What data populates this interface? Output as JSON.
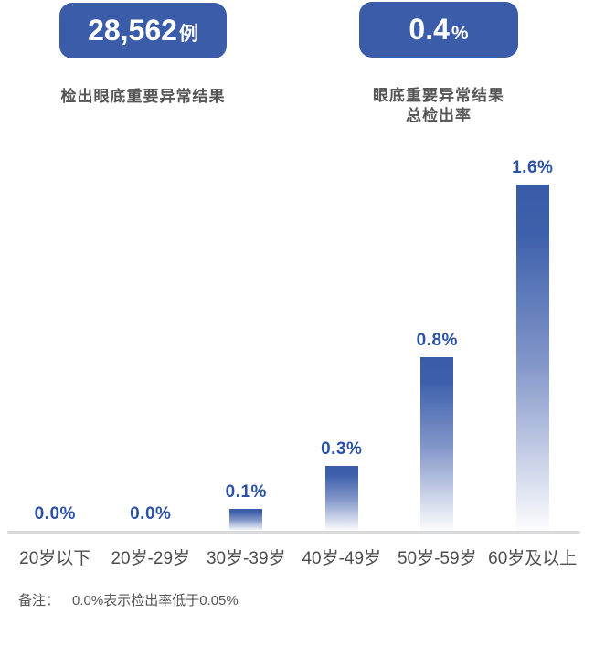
{
  "stats": [
    {
      "value": "28,562",
      "unit": "例",
      "label": "检出眼底重要异常结果"
    },
    {
      "value": "0.4",
      "unit": "%",
      "label": "眼底重要异常结果\n总检出率"
    }
  ],
  "chart_data": {
    "type": "bar",
    "categories": [
      "20岁以下",
      "20岁-29岁",
      "30岁-39岁",
      "40岁-49岁",
      "50岁-59岁",
      "60岁及以上"
    ],
    "values": [
      0.0,
      0.0,
      0.1,
      0.3,
      0.8,
      1.6
    ],
    "value_labels": [
      "0.0%",
      "0.0%",
      "0.1%",
      "0.3%",
      "0.8%",
      "1.6%"
    ],
    "title": "",
    "xlabel": "",
    "ylabel": "",
    "unit": "%",
    "ylim": [
      0,
      1.6
    ],
    "grid": false,
    "legend": "none",
    "bar_gradient_top": "#3A5CA8",
    "bar_gradient_upper": "#3F61AC",
    "bar_gradient_mid": "#8397C9",
    "bar_gradient_bottom": "#FDFDFE",
    "value_label_color": "#2B52A3"
  },
  "note": {
    "prefix": "备注：",
    "text": "0.0%表示检出率低于0.05%"
  },
  "colors": {
    "badge_bg": "#3B5CA8",
    "badge_text": "#FFFFFF",
    "caption_text": "#555555",
    "axis_line": "#D9D9D9",
    "axis_label": "#4D4D4D"
  }
}
